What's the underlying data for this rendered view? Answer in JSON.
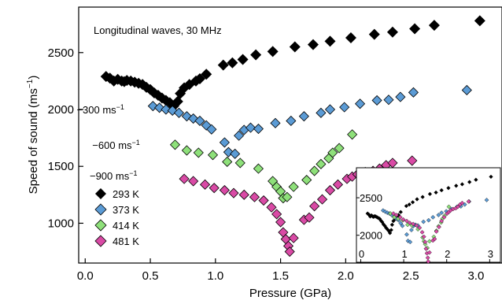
{
  "chart_data": {
    "type": "scatter",
    "title": "Longitudinal waves, 30 MHz",
    "xlabel": "Pressure (GPa)",
    "ylabel": "Speed of sound (ms",
    "ylabel_sup": "−1",
    "ylabel_close": ")",
    "xlim": [
      -0.05,
      3.2
    ],
    "ylim": [
      650,
      2900
    ],
    "xticks": [
      "0.0",
      "0.5",
      "1.0",
      "1.5",
      "2.0",
      "2.5",
      "3.0"
    ],
    "xtick_values": [
      0,
      0.5,
      1,
      1.5,
      2,
      2.5,
      3
    ],
    "yticks": [
      "1000",
      "1500",
      "2000",
      "2500"
    ],
    "ytick_values": [
      1000,
      1500,
      2000,
      2500
    ],
    "legend_position": "lower-left",
    "annotations": [
      {
        "text": "−300 ms",
        "sup": "−1",
        "x": 0.3,
        "y": 2000
      },
      {
        "text": "−600 ms",
        "sup": "−1",
        "x": 0.42,
        "y": 1690
      },
      {
        "text": "−900 ms",
        "sup": "−1",
        "x": 0.4,
        "y": 1420
      }
    ],
    "series": [
      {
        "name": "293 K",
        "color": "#000000",
        "marker": "diamond",
        "points": [
          [
            0.16,
            2290
          ],
          [
            0.19,
            2275
          ],
          [
            0.22,
            2250
          ],
          [
            0.25,
            2265
          ],
          [
            0.28,
            2250
          ],
          [
            0.3,
            2245
          ],
          [
            0.32,
            2255
          ],
          [
            0.35,
            2250
          ],
          [
            0.38,
            2240
          ],
          [
            0.41,
            2230
          ],
          [
            0.44,
            2220
          ],
          [
            0.47,
            2195
          ],
          [
            0.5,
            2175
          ],
          [
            0.53,
            2145
          ],
          [
            0.56,
            2125
          ],
          [
            0.59,
            2100
          ],
          [
            0.62,
            2080
          ],
          [
            0.65,
            2060
          ],
          [
            0.68,
            2030
          ],
          [
            0.71,
            2070
          ],
          [
            0.73,
            2140
          ],
          [
            0.76,
            2190
          ],
          [
            0.8,
            2220
          ],
          [
            0.85,
            2250
          ],
          [
            0.88,
            2270
          ],
          [
            0.93,
            2310
          ],
          [
            1.06,
            2390
          ],
          [
            1.13,
            2410
          ],
          [
            1.21,
            2440
          ],
          [
            1.31,
            2480
          ],
          [
            1.44,
            2510
          ],
          [
            1.61,
            2550
          ],
          [
            1.75,
            2570
          ],
          [
            1.88,
            2600
          ],
          [
            2.04,
            2630
          ],
          [
            2.22,
            2660
          ],
          [
            2.36,
            2680
          ],
          [
            2.53,
            2710
          ],
          [
            2.68,
            2740
          ],
          [
            3.03,
            2780
          ]
        ]
      },
      {
        "name": "373 K",
        "color": "#5b9bd5",
        "marker": "diamond",
        "points": [
          [
            0.52,
            2030
          ],
          [
            0.57,
            2015
          ],
          [
            0.62,
            2000
          ],
          [
            0.67,
            1990
          ],
          [
            0.72,
            1970
          ],
          [
            0.78,
            1940
          ],
          [
            0.83,
            1920
          ],
          [
            0.88,
            1900
          ],
          [
            0.93,
            1860
          ],
          [
            0.97,
            1825
          ],
          [
            1.07,
            1710
          ],
          [
            1.1,
            1625
          ],
          [
            1.15,
            1610
          ],
          [
            1.18,
            1770
          ],
          [
            1.22,
            1820
          ],
          [
            1.27,
            1840
          ],
          [
            1.33,
            1830
          ],
          [
            1.46,
            1880
          ],
          [
            1.58,
            1900
          ],
          [
            1.68,
            1940
          ],
          [
            1.81,
            1970
          ],
          [
            1.88,
            2000
          ],
          [
            1.99,
            2020
          ],
          [
            2.11,
            2050
          ],
          [
            2.24,
            2080
          ],
          [
            2.33,
            2085
          ],
          [
            2.42,
            2110
          ],
          [
            2.52,
            2150
          ],
          [
            2.93,
            2170
          ]
        ]
      },
      {
        "name": "414 K",
        "color": "#8ee07a",
        "marker": "diamond",
        "points": [
          [
            0.69,
            1690
          ],
          [
            0.78,
            1640
          ],
          [
            0.87,
            1620
          ],
          [
            0.98,
            1600
          ],
          [
            1.09,
            1540
          ],
          [
            1.19,
            1530
          ],
          [
            1.33,
            1480
          ],
          [
            1.44,
            1370
          ],
          [
            1.47,
            1320
          ],
          [
            1.5,
            1280
          ],
          [
            1.52,
            1220
          ],
          [
            1.55,
            1230
          ],
          [
            1.6,
            1320
          ],
          [
            1.7,
            1380
          ],
          [
            1.76,
            1460
          ],
          [
            1.81,
            1520
          ],
          [
            1.87,
            1570
          ],
          [
            1.9,
            1620
          ],
          [
            1.95,
            1660
          ],
          [
            2.05,
            1780
          ]
        ]
      },
      {
        "name": "481 K",
        "color": "#d94aa5",
        "marker": "diamond",
        "points": [
          [
            0.76,
            1390
          ],
          [
            0.83,
            1370
          ],
          [
            0.92,
            1340
          ],
          [
            0.99,
            1310
          ],
          [
            1.07,
            1290
          ],
          [
            1.14,
            1265
          ],
          [
            1.22,
            1250
          ],
          [
            1.3,
            1230
          ],
          [
            1.37,
            1200
          ],
          [
            1.43,
            1140
          ],
          [
            1.47,
            1080
          ],
          [
            1.5,
            1010
          ],
          [
            1.52,
            920
          ],
          [
            1.54,
            860
          ],
          [
            1.56,
            800
          ],
          [
            1.57,
            750
          ],
          [
            1.6,
            870
          ],
          [
            1.68,
            1030
          ],
          [
            1.72,
            1050
          ],
          [
            1.76,
            1150
          ],
          [
            1.82,
            1210
          ],
          [
            1.88,
            1290
          ],
          [
            1.94,
            1340
          ],
          [
            2.01,
            1390
          ],
          [
            2.05,
            1410
          ],
          [
            2.09,
            1430
          ],
          [
            2.15,
            1450
          ],
          [
            2.21,
            1460
          ],
          [
            2.26,
            1480
          ],
          [
            2.31,
            1510
          ],
          [
            2.36,
            1530
          ],
          [
            2.51,
            1550
          ]
        ]
      }
    ],
    "inset": {
      "xticks": [
        "0",
        "1",
        "2",
        "3"
      ],
      "xtick_values": [
        0,
        1,
        2,
        3
      ],
      "yticks": [
        "2000",
        "2500"
      ],
      "ytick_values": [
        2000,
        2500
      ],
      "xlim": [
        -0.1,
        3.25
      ],
      "ylim": [
        1640,
        2900
      ]
    }
  }
}
